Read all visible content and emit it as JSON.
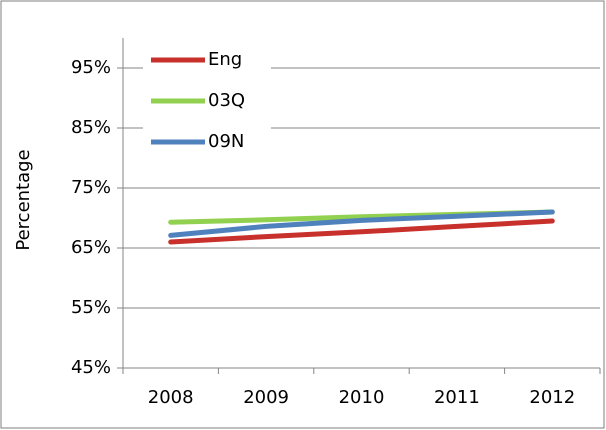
{
  "chart_data": {
    "type": "line",
    "y_label": "Percentage",
    "categories": [
      "2008",
      "2009",
      "2010",
      "2011",
      "2012"
    ],
    "series": [
      {
        "name": "Eng",
        "color": "#c8302c",
        "values": [
          66.0,
          66.9,
          67.7,
          68.6,
          69.5
        ]
      },
      {
        "name": "03Q",
        "color": "#92d050",
        "values": [
          69.3,
          69.7,
          70.2,
          70.6,
          71.0
        ]
      },
      {
        "name": "09N",
        "color": "#4f81bd",
        "values": [
          67.1,
          68.6,
          69.6,
          70.3,
          71.0
        ]
      }
    ],
    "ylim": [
      45,
      100
    ],
    "yticks": [
      {
        "value": 45,
        "label": "45%"
      },
      {
        "value": 55,
        "label": "55%"
      },
      {
        "value": 65,
        "label": "65%"
      },
      {
        "value": 75,
        "label": "75%"
      },
      {
        "value": 85,
        "label": "85%"
      },
      {
        "value": 95,
        "label": "95%"
      }
    ],
    "grid": true,
    "legend": "top-left"
  }
}
